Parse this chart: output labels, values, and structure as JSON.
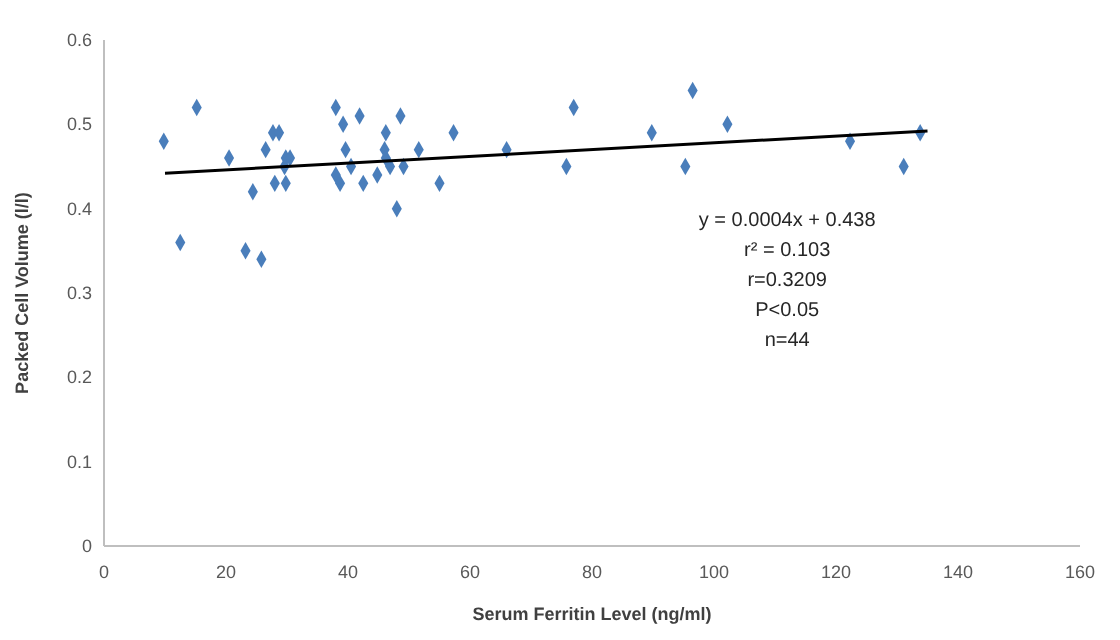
{
  "chart_data": {
    "type": "scatter",
    "xlabel": "Serum Ferritin Level (ng/ml)",
    "ylabel": "Packed Cell Volume (l/l)",
    "xlim": [
      0,
      160
    ],
    "xticks": [
      0,
      20,
      40,
      60,
      80,
      100,
      120,
      140,
      160
    ],
    "ylim": [
      0,
      0.6
    ],
    "yticks": [
      0,
      0.1,
      0.2,
      0.3,
      0.4,
      0.5,
      0.6
    ],
    "grid": false,
    "marker": "diamond",
    "series": [
      {
        "color": "#4a7ebb",
        "x": [
          9.8,
          15.2,
          12.5,
          20.5,
          23.2,
          24.4,
          25.8,
          26.5,
          27.7,
          28.7,
          28,
          29.8,
          29.6,
          29.8,
          30.5,
          38,
          39.2,
          39.6,
          38,
          38.7,
          40.5,
          41.9,
          42.5,
          44.8,
          46.2,
          48.6,
          46,
          46.2,
          46.9,
          49.1,
          48,
          51.6,
          55,
          57.3,
          66,
          75.8,
          77,
          89.8,
          96.5,
          95.3,
          102.2,
          122.3,
          131.1,
          133.8
        ],
        "values": [
          0.48,
          0.52,
          0.36,
          0.46,
          0.35,
          0.42,
          0.34,
          0.47,
          0.49,
          0.49,
          0.43,
          0.43,
          0.45,
          0.46,
          0.46,
          0.52,
          0.5,
          0.47,
          0.44,
          0.43,
          0.45,
          0.51,
          0.43,
          0.44,
          0.49,
          0.51,
          0.47,
          0.46,
          0.45,
          0.45,
          0.4,
          0.47,
          0.43,
          0.49,
          0.47,
          0.45,
          0.52,
          0.49,
          0.54,
          0.45,
          0.5,
          0.48,
          0.45,
          0.49
        ]
      },
      {
        "type": "line",
        "color": "#000000",
        "marker": "none",
        "x": [
          10,
          135
        ],
        "values": [
          0.442,
          0.492
        ]
      }
    ],
    "annotations": [
      "y = 0.0004x + 0.438",
      "r² = 0.103",
      "r=0.3209",
      "P<0.05",
      "n=44"
    ]
  }
}
